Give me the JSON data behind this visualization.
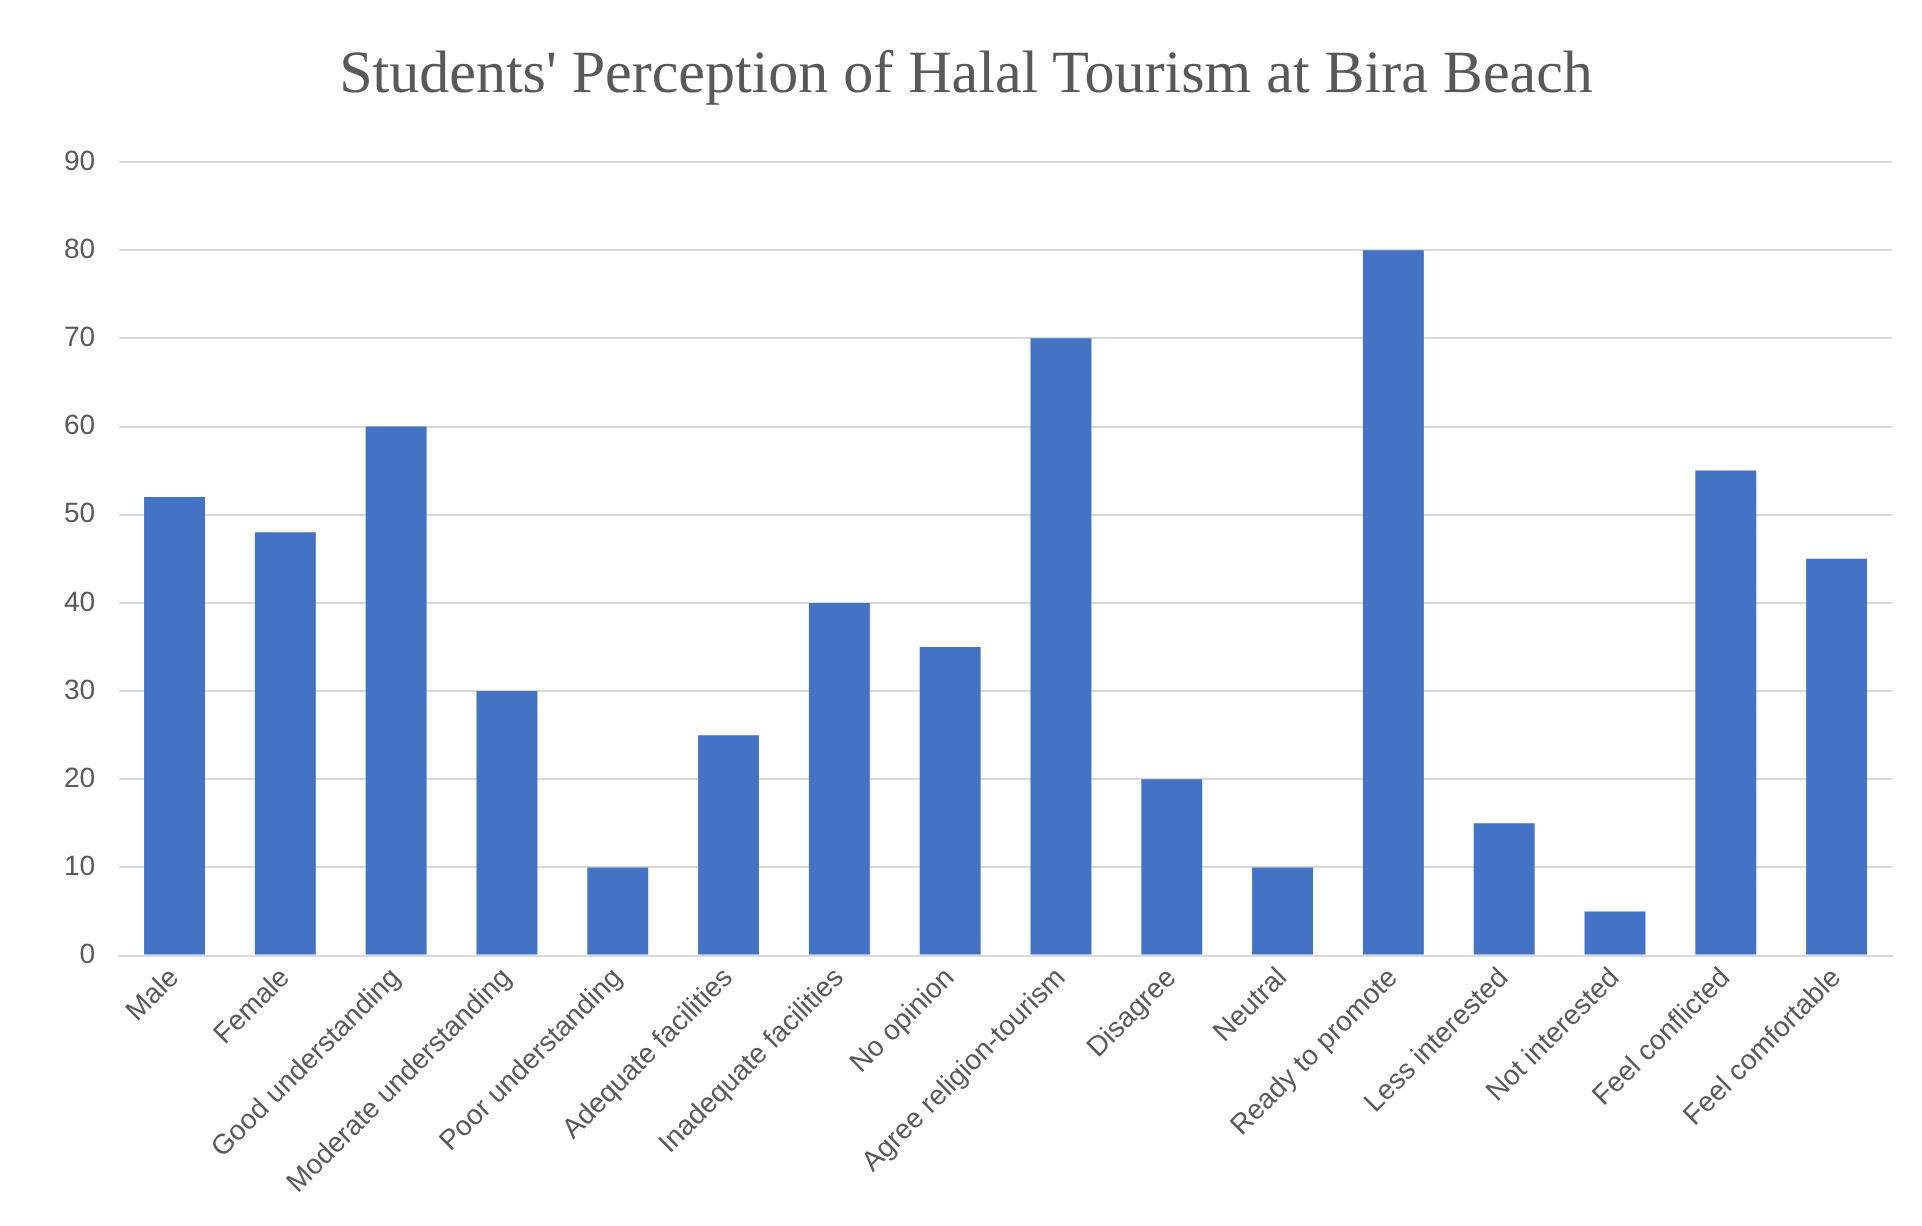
{
  "chart_data": {
    "type": "bar",
    "title": "Students' Perception of Halal Tourism at Bira Beach",
    "categories": [
      "Male",
      "Female",
      "Good understanding",
      "Moderate understanding",
      "Poor understanding",
      "Adequate facilities",
      "Inadequate facilities",
      "No opinion",
      "Agree religion-tourism",
      "Disagree",
      "Neutral",
      "Ready to promote",
      "Less interested",
      "Not interested",
      "Feel conflicted",
      "Feel comfortable"
    ],
    "values": [
      52,
      48,
      60,
      30,
      10,
      25,
      40,
      35,
      70,
      20,
      10,
      80,
      15,
      5,
      55,
      45
    ],
    "color": "#4472c4",
    "ylim": [
      0,
      90
    ],
    "yticks": [
      0,
      10,
      20,
      30,
      40,
      50,
      60,
      70,
      80,
      90
    ],
    "grid": "y"
  }
}
